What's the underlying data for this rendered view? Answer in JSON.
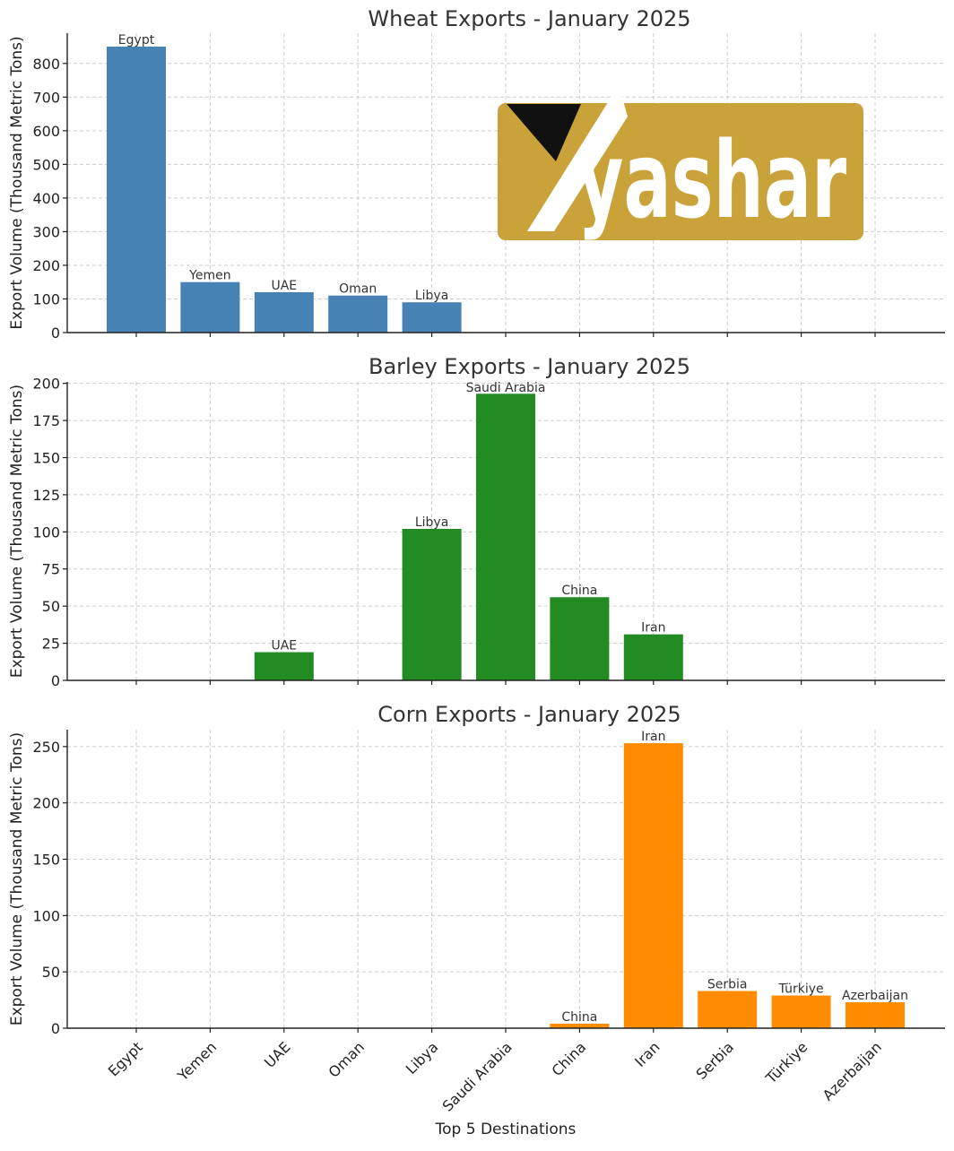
{
  "categories": [
    "Egypt",
    "Yemen",
    "UAE",
    "Oman",
    "Libya",
    "Saudi Arabia",
    "China",
    "Iran",
    "Serbia",
    "Türkiye",
    "Azerbaijan"
  ],
  "xlabel": "Top 5 Destinations",
  "logo": {
    "text": "yashar",
    "bg_color": "#c9a23a",
    "text_color": "#ffffff",
    "mark_color": "#111111"
  },
  "chart_data": [
    {
      "type": "bar",
      "title": "Wheat Exports - January 2025",
      "ylabel": "Export Volume (Thousand Metric Tons)",
      "xlabel": "",
      "ylim": [
        0,
        890
      ],
      "yticks": [
        0,
        100,
        200,
        300,
        400,
        500,
        600,
        700,
        800
      ],
      "color": "#4682b4",
      "grid": true,
      "categories": [
        "Egypt",
        "Yemen",
        "UAE",
        "Oman",
        "Libya",
        "Saudi Arabia",
        "China",
        "Iran",
        "Serbia",
        "Türkiye",
        "Azerbaijan"
      ],
      "values": [
        850,
        150,
        120,
        110,
        90,
        null,
        null,
        null,
        null,
        null,
        null
      ]
    },
    {
      "type": "bar",
      "title": "Barley Exports - January 2025",
      "ylabel": "Export Volume (Thousand Metric Tons)",
      "xlabel": "",
      "ylim": [
        0,
        201
      ],
      "yticks": [
        0,
        25,
        50,
        75,
        100,
        125,
        150,
        175,
        200
      ],
      "color": "#228b22",
      "grid": true,
      "categories": [
        "Egypt",
        "Yemen",
        "UAE",
        "Oman",
        "Libya",
        "Saudi Arabia",
        "China",
        "Iran",
        "Serbia",
        "Türkiye",
        "Azerbaijan"
      ],
      "values": [
        null,
        null,
        19,
        null,
        102,
        193,
        56,
        31,
        null,
        null,
        null
      ]
    },
    {
      "type": "bar",
      "title": "Corn Exports - January 2025",
      "ylabel": "Export Volume (Thousand Metric Tons)",
      "xlabel": "Top 5 Destinations",
      "ylim": [
        0,
        265
      ],
      "yticks": [
        0,
        50,
        100,
        150,
        200,
        250
      ],
      "color": "#ff8c00",
      "grid": true,
      "categories": [
        "Egypt",
        "Yemen",
        "UAE",
        "Oman",
        "Libya",
        "Saudi Arabia",
        "China",
        "Iran",
        "Serbia",
        "Türkiye",
        "Azerbaijan"
      ],
      "values": [
        null,
        null,
        null,
        null,
        null,
        null,
        4,
        253,
        33,
        29,
        23
      ]
    }
  ]
}
